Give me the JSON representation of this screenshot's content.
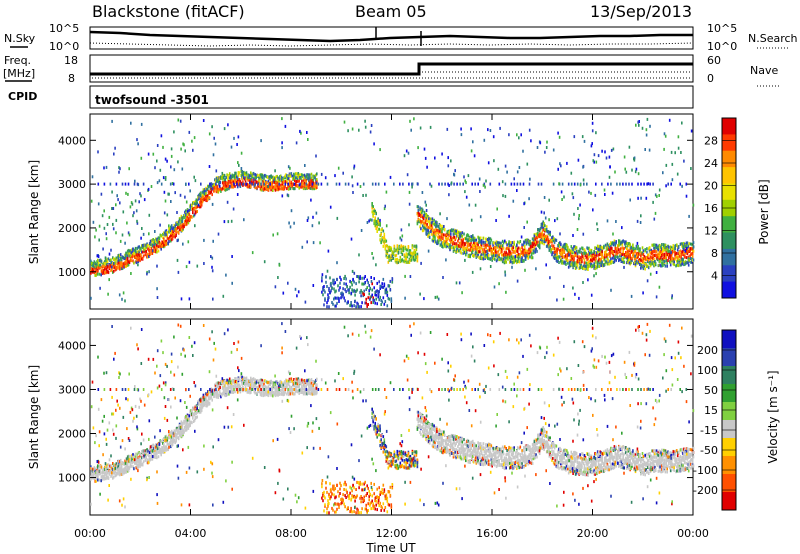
{
  "header": {
    "station": "Blackstone (fitACF)",
    "beam": "Beam 05",
    "date": "13/Sep/2013"
  },
  "panels": {
    "noise": {
      "left_label": "N.Sky",
      "right_label": "N.Search",
      "left_ticks": [
        "10^5",
        "10^0"
      ],
      "right_ticks": [
        "10^5",
        "10^0"
      ]
    },
    "freq": {
      "left_label": "Freq.",
      "unit_label": "[MHz]",
      "left_ticks": [
        "18",
        "8"
      ],
      "right_label": "Nave",
      "right_ticks": [
        "60",
        "0"
      ],
      "step_x_label": "13:00"
    },
    "cpid": {
      "label": "CPID",
      "text": "twofsound -3501"
    }
  },
  "legend_colors": {
    "line": "#000000",
    "frame": "#000000"
  },
  "chart_data": [
    {
      "type": "heatmap",
      "name": "power",
      "ylabel": "Slant Range [km]",
      "xlabel": "",
      "x_range_hours": [
        0,
        24
      ],
      "ylim": [
        150,
        4600
      ],
      "y_ticks": [
        1000,
        2000,
        3000,
        4000
      ],
      "x_ticks": [
        "00:00",
        "04:00",
        "08:00",
        "12:00",
        "16:00",
        "20:00",
        "00:00"
      ],
      "colorbar": {
        "label": "Power [dB]",
        "ticks": [
          "28",
          "24",
          "20",
          "16",
          "12",
          "8",
          "4"
        ],
        "colors": [
          "#e00000",
          "#ff3a00",
          "#ff8a00",
          "#ffc400",
          "#e8e000",
          "#a0d000",
          "#40b040",
          "#2e9060",
          "#3070a0",
          "#2a40c0",
          "#1010e0"
        ]
      },
      "trace_hours": [
        0,
        0.5,
        1,
        1.5,
        2,
        2.5,
        3,
        3.5,
        4,
        4.5,
        5,
        5.5,
        6,
        6.5,
        7,
        7.5,
        8,
        8.5
      ],
      "trace_range_km": [
        1000,
        1050,
        1100,
        1250,
        1350,
        1500,
        1700,
        1950,
        2300,
        2650,
        2900,
        3000,
        3050,
        3000,
        2950,
        2950,
        3000,
        3000
      ],
      "trace2_hours": [
        13.0,
        13.5,
        14,
        14.5,
        15,
        15.5,
        16,
        16.5,
        17,
        17.5,
        18,
        18.5,
        19,
        19.5,
        20,
        20.5,
        21,
        21.5,
        22,
        22.5,
        23,
        23.5,
        24
      ],
      "trace2_range_km": [
        2300,
        2000,
        1800,
        1700,
        1600,
        1550,
        1500,
        1450,
        1450,
        1500,
        1900,
        1500,
        1350,
        1300,
        1300,
        1400,
        1500,
        1400,
        1300,
        1400,
        1350,
        1400,
        1450
      ]
    },
    {
      "type": "heatmap",
      "name": "velocity",
      "ylabel": "Slant Range [km]",
      "xlabel": "Time UT",
      "x_range_hours": [
        0,
        24
      ],
      "ylim": [
        150,
        4600
      ],
      "y_ticks": [
        1000,
        2000,
        3000,
        4000
      ],
      "x_ticks": [
        "00:00",
        "04:00",
        "08:00",
        "12:00",
        "16:00",
        "20:00",
        "00:00"
      ],
      "colorbar": {
        "label": "Velocity [m s⁻¹]",
        "ticks": [
          "200",
          "100",
          "50",
          "15",
          "-15",
          "-50",
          "-100",
          "-200"
        ],
        "colors": [
          "#1010c0",
          "#2a40b0",
          "#2e8060",
          "#30a030",
          "#80d040",
          "#c8c8c8",
          "#ffd000",
          "#ff9000",
          "#ff5000",
          "#e00000"
        ]
      }
    }
  ]
}
